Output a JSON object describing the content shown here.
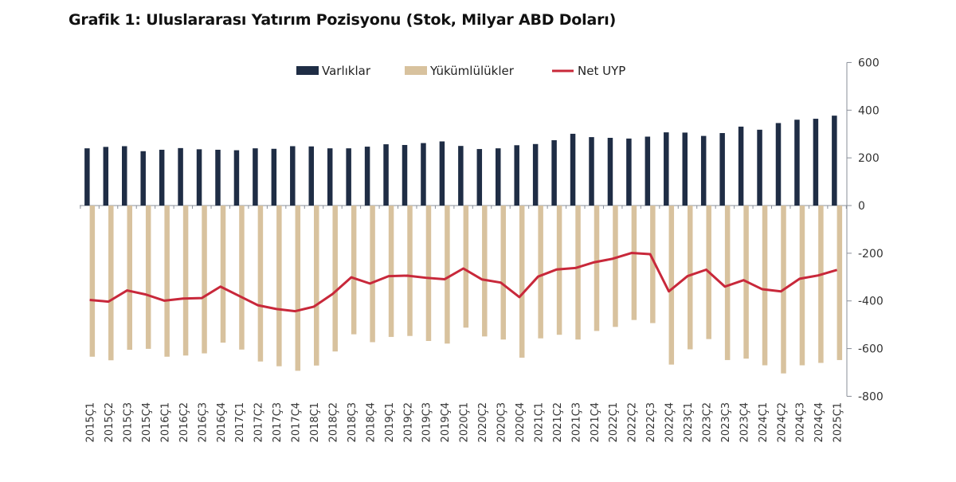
{
  "chart_data": {
    "type": "bar",
    "title": "Grafik 1: Uluslararası Yatırım Pozisyonu (Stok, Milyar ABD Doları)",
    "xlabel": "",
    "ylabel": "",
    "ylim": [
      -800,
      600
    ],
    "yticks": [
      600,
      400,
      200,
      0,
      -200,
      -400,
      -600,
      -800
    ],
    "y_axis_position": "right",
    "grid": false,
    "legend_position": "top",
    "categories": [
      "2015Ç1",
      "2015Ç2",
      "2015Ç3",
      "2015Ç4",
      "2016Ç1",
      "2016Ç2",
      "2016Ç3",
      "2016Ç4",
      "2017Ç1",
      "2017Ç2",
      "2017Ç3",
      "2017Ç4",
      "2018Ç1",
      "2018Ç2",
      "2018Ç3",
      "2018Ç4",
      "2019Ç1",
      "2019Ç2",
      "2019Ç3",
      "2019Ç4",
      "2020Ç1",
      "2020Ç2",
      "2020Ç3",
      "2020Ç4",
      "2021Ç1",
      "2021Ç2",
      "2021Ç3",
      "2021Ç4",
      "2022Ç1",
      "2022Ç2",
      "2022Ç3",
      "2022Ç4",
      "2023Ç1",
      "2023Ç2",
      "2023Ç3",
      "2023Ç4",
      "2024Ç1",
      "2024Ç2",
      "2024Ç3",
      "2024Ç4",
      "2025Ç1"
    ],
    "series": [
      {
        "name": "Varlıklar",
        "type": "bar",
        "color": "#1f2d45",
        "values": [
          240,
          246,
          249,
          228,
          234,
          241,
          236,
          234,
          232,
          240,
          238,
          249,
          248,
          240,
          240,
          247,
          257,
          254,
          262,
          269,
          250,
          237,
          240,
          253,
          258,
          274,
          301,
          287,
          284,
          281,
          289,
          307,
          306,
          292,
          304,
          331,
          318,
          346,
          360,
          364,
          377
        ]
      },
      {
        "name": "Yükümlülükler",
        "type": "bar",
        "color": "#d8c29e",
        "values": [
          -634,
          -649,
          -605,
          -601,
          -634,
          -629,
          -620,
          -575,
          -604,
          -654,
          -674,
          -693,
          -671,
          -612,
          -540,
          -573,
          -551,
          -547,
          -568,
          -579,
          -512,
          -549,
          -562,
          -638,
          -557,
          -542,
          -562,
          -526,
          -509,
          -480,
          -493,
          -667,
          -603,
          -560,
          -648,
          -642,
          -670,
          -704,
          -670,
          -660,
          -648
        ]
      },
      {
        "name": "Net UYP",
        "type": "line",
        "color": "#c8283a",
        "values": [
          -396,
          -403,
          -356,
          -373,
          -399,
          -390,
          -388,
          -340,
          -379,
          -418,
          -434,
          -443,
          -424,
          -371,
          -301,
          -327,
          -296,
          -294,
          -303,
          -309,
          -264,
          -310,
          -323,
          -384,
          -298,
          -268,
          -262,
          -238,
          -223,
          -199,
          -204,
          -360,
          -296,
          -269,
          -340,
          -313,
          -351,
          -360,
          -307,
          -293,
          -270
        ]
      }
    ]
  }
}
